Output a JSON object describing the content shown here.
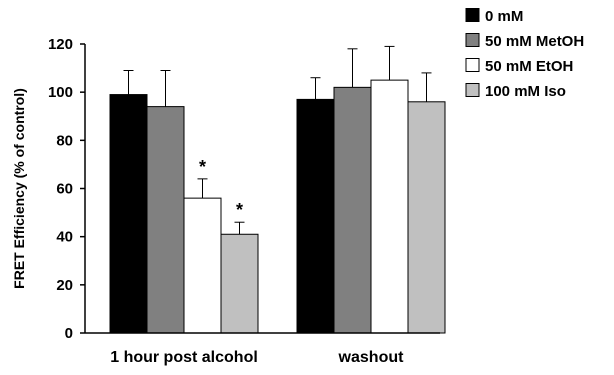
{
  "chart_data": {
    "type": "bar",
    "title": "",
    "xlabel": "",
    "ylabel": "FRET Efficiency (% of control)",
    "ylim": [
      0,
      120
    ],
    "yticks": [
      0,
      20,
      40,
      60,
      80,
      100,
      120
    ],
    "categories": [
      "1 hour post alcohol",
      "washout"
    ],
    "series": [
      {
        "name": "0 mM",
        "color": "#000000",
        "values": [
          99,
          97
        ],
        "errors": [
          10,
          9
        ]
      },
      {
        "name": "50 mM MetOH",
        "color": "#808080",
        "values": [
          94,
          102
        ],
        "errors": [
          15,
          16
        ]
      },
      {
        "name": "50 mM EtOH",
        "color": "#ffffff",
        "values": [
          56,
          105
        ],
        "errors": [
          8,
          14
        ]
      },
      {
        "name": "100 mM Iso",
        "color": "#c0c0c0",
        "values": [
          41,
          96
        ],
        "errors": [
          5,
          12
        ]
      }
    ],
    "annotations": [
      {
        "text": "*",
        "category": 0,
        "series": 2
      },
      {
        "text": "*",
        "category": 0,
        "series": 3
      }
    ],
    "legend": "top-right",
    "grid": false
  }
}
